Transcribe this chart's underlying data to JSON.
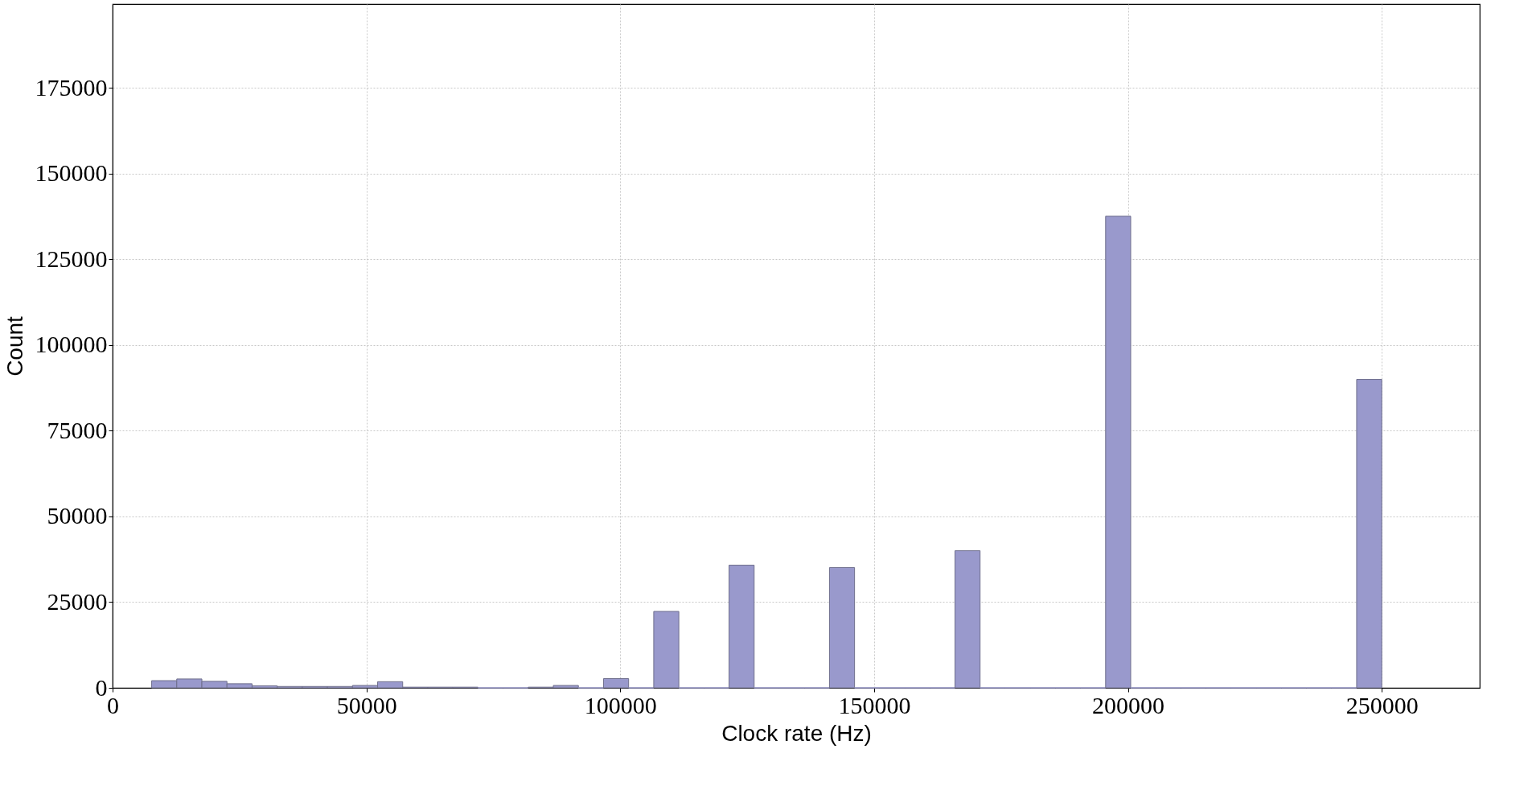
{
  "chart_data": {
    "type": "histogram",
    "xlabel": "Clock rate (Hz)",
    "ylabel": "Count",
    "bins": [
      7695,
      12640,
      17585,
      22530,
      27475,
      32420,
      37365,
      42310,
      47255,
      52200,
      57145,
      62090,
      67035,
      71980,
      76925,
      81870,
      86815,
      91760,
      96705,
      101650,
      106595,
      111540,
      116485,
      121430,
      126375,
      131320,
      136265,
      141210,
      146155,
      151100,
      156045,
      160990,
      165935,
      170880,
      175825,
      180770,
      185715,
      190660,
      195605,
      200550,
      205495,
      210440,
      215385,
      220330,
      225275,
      230220,
      235165,
      240110,
      245055,
      250000
    ],
    "values": [
      2100,
      2600,
      1900,
      1200,
      600,
      400,
      400,
      400,
      700,
      1800,
      200,
      200,
      200,
      0,
      0,
      200,
      700,
      0,
      2700,
      0,
      22300,
      0,
      0,
      35800,
      0,
      0,
      0,
      35100,
      0,
      0,
      0,
      0,
      40000,
      0,
      0,
      0,
      0,
      0,
      137600,
      0,
      0,
      0,
      0,
      0,
      0,
      0,
      0,
      0,
      90000
    ],
    "color": "#9999cc",
    "xlim": [
      0,
      269300
    ],
    "xticks": [
      0,
      50000,
      100000,
      150000,
      200000,
      250000
    ],
    "ylim": [
      0,
      199500
    ],
    "yticks": [
      0,
      25000,
      50000,
      75000,
      100000,
      125000,
      150000,
      175000
    ],
    "grid": true
  }
}
